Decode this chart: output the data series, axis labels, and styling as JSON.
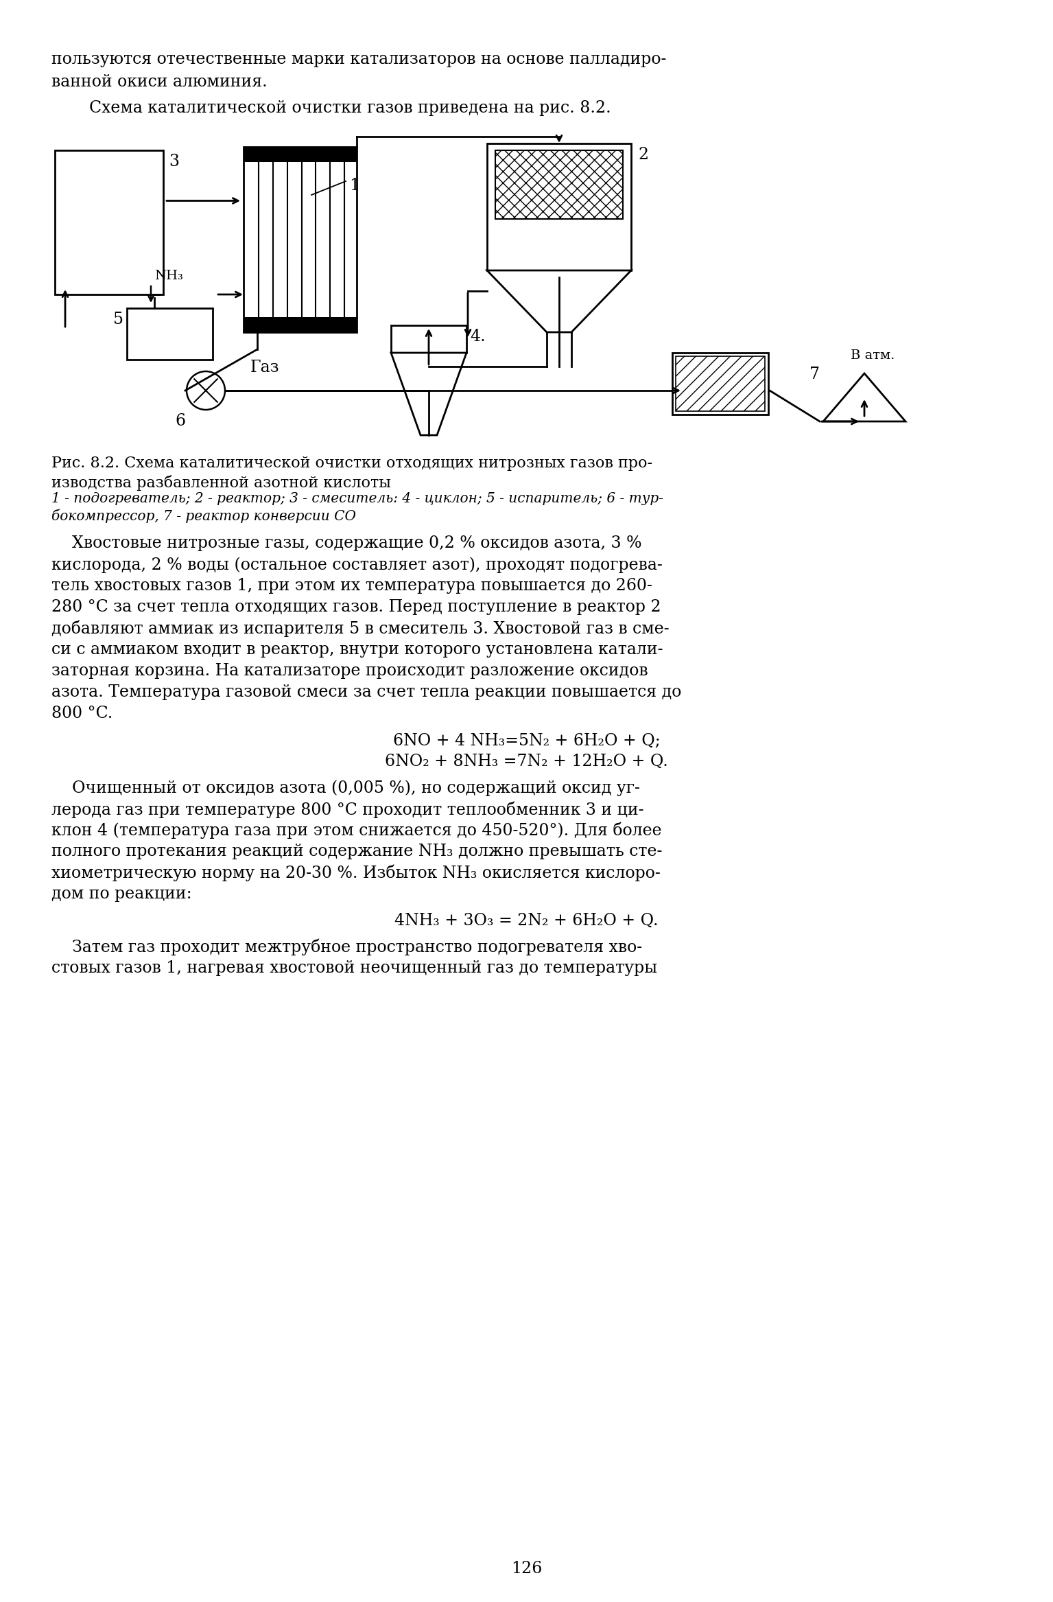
{
  "bg_color": "#ffffff",
  "top_text_1": "пользуются отечественные марки катализаторов на основе палладиро-",
  "top_text_2": "ванной окиси алюминия.",
  "top_text_3": "Схема каталитической очистки газов приведена на рис. 8.2.",
  "fig_caption_1": "Рис. 8.2. Схема каталитической очистки отходящих нитрозных газов про-",
  "fig_caption_2": "изводства разбавленной азотной кислоты",
  "fig_caption_3": "1 - подогреватель; 2 - реактор; 3 - смеситель: 4 - циклон; 5 - испаритель; 6 - тур-",
  "fig_caption_4": "бокомпрессор, 7 - реактор конверсии СО",
  "body_text": [
    "    Хвостовые нитрозные газы, содержащие 0,2 % оксидов азота, 3 %",
    "кислорода, 2 % воды (остальное составляет азот), проходят подогрева-",
    "тель хвостовых газов 1, при этом их температура повышается до 260-",
    "280 °C за счет тепла отходящих газов. Перед поступление в реактор 2",
    "добавляют аммиак из испарителя 5 в смеситель 3. Хвостовой газ в сме-",
    "си с аммиаком входит в реактор, внутри которого установлена катали-",
    "заторная корзина. На катализаторе происходит разложение оксидов",
    "азота. Температура газовой смеси за счет тепла реакции повышается до",
    "800 °C."
  ],
  "eq1": "6NO + 4 NH₃=5N₂ + 6H₂O + Q;",
  "eq2": "6NO₂ + 8NH₃ =7N₂ + 12H₂O + Q.",
  "body_text2": [
    "    Очищенный от оксидов азота (0,005 %), но содержащий оксид уг-",
    "лерода газ при температуре 800 °C проходит теплообменник 3 и ци-",
    "клон 4 (температура газа при этом снижается до 450-520°). Для более",
    "полного протекания реакций содержание NH₃ должно превышать сте-",
    "хиометрическую норму на 20-30 %. Избыток NH₃ окисляется кислоро-",
    "дом по реакции:"
  ],
  "eq3": "4NH₃ + 3O₃ = 2N₂ + 6H₂O + Q.",
  "body_text3": [
    "    Затем газ проходит межтрубное пространство подогревателя хво-",
    "стовых газов 1, нагревая хвостовой неочищенный газ до температуры"
  ],
  "page_num": "126"
}
